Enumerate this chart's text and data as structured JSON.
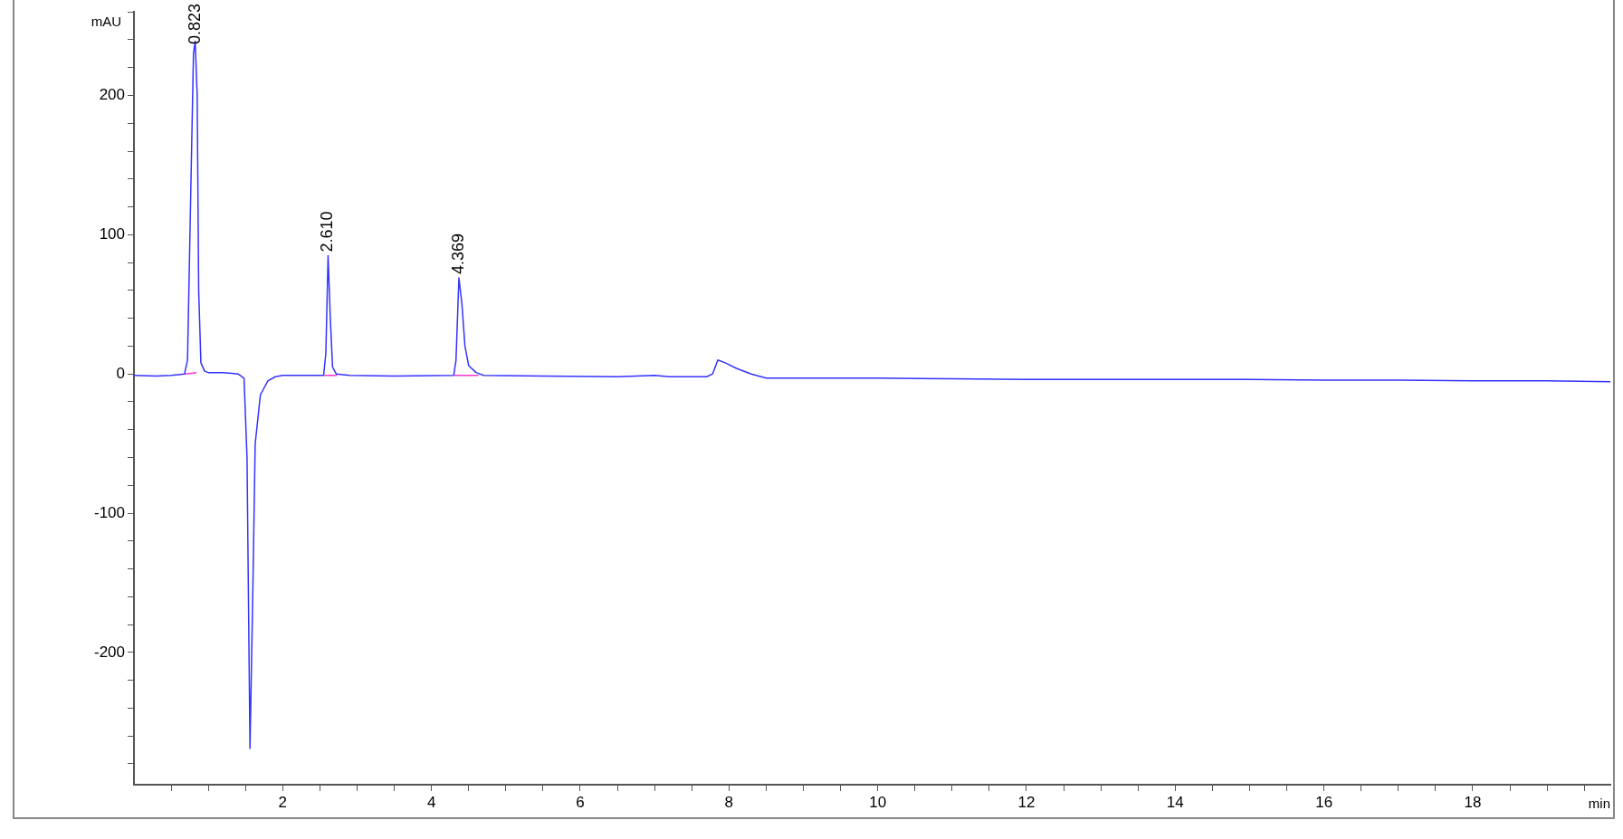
{
  "chart_data": {
    "type": "line",
    "xlabel": "min",
    "ylabel": "mAU",
    "xlim": [
      0,
      19.85
    ],
    "ylim": [
      -295,
      260
    ],
    "xticks": [
      {
        "value": 0.5,
        "label": null
      },
      {
        "value": 1,
        "label": null
      },
      {
        "value": 1.5,
        "label": null
      },
      2,
      {
        "value": 2.5,
        "label": null
      },
      {
        "value": 3,
        "label": null
      },
      {
        "value": 3.5,
        "label": null
      },
      4,
      {
        "value": 4.5,
        "label": null
      },
      {
        "value": 5,
        "label": null
      },
      {
        "value": 5.5,
        "label": null
      },
      6,
      {
        "value": 6.5,
        "label": null
      },
      {
        "value": 7,
        "label": null
      },
      {
        "value": 7.5,
        "label": null
      },
      8,
      {
        "value": 8.5,
        "label": null
      },
      {
        "value": 9,
        "label": null
      },
      {
        "value": 9.5,
        "label": null
      },
      10,
      {
        "value": 10.5,
        "label": null
      },
      {
        "value": 11,
        "label": null
      },
      {
        "value": 11.5,
        "label": null
      },
      12,
      {
        "value": 12.5,
        "label": null
      },
      {
        "value": 13,
        "label": null
      },
      {
        "value": 13.5,
        "label": null
      },
      14,
      {
        "value": 14.5,
        "label": null
      },
      {
        "value": 15,
        "label": null
      },
      {
        "value": 15.5,
        "label": null
      },
      16,
      {
        "value": 16.5,
        "label": null
      },
      {
        "value": 17,
        "label": null
      },
      {
        "value": 17.5,
        "label": null
      },
      18,
      {
        "value": 18.5,
        "label": null
      },
      {
        "value": 19,
        "label": null
      },
      {
        "value": 19.5,
        "label": null
      }
    ],
    "yticks": [
      {
        "value": -280,
        "label": null
      },
      {
        "value": -260,
        "label": null
      },
      {
        "value": -240,
        "label": null
      },
      {
        "value": -220,
        "label": null
      },
      -200,
      {
        "value": -180,
        "label": null
      },
      {
        "value": -160,
        "label": null
      },
      {
        "value": -140,
        "label": null
      },
      {
        "value": -120,
        "label": null
      },
      -100,
      {
        "value": -80,
        "label": null
      },
      {
        "value": -60,
        "label": null
      },
      {
        "value": -40,
        "label": null
      },
      {
        "value": -20,
        "label": null
      },
      0,
      {
        "value": 20,
        "label": null
      },
      {
        "value": 40,
        "label": null
      },
      {
        "value": 60,
        "label": null
      },
      {
        "value": 80,
        "label": null
      },
      100,
      {
        "value": 120,
        "label": null
      },
      {
        "value": 140,
        "label": null
      },
      {
        "value": 160,
        "label": null
      },
      {
        "value": 180,
        "label": null
      },
      200,
      {
        "value": 220,
        "label": null
      },
      {
        "value": 240,
        "label": null
      },
      {
        "value": 260,
        "label": null
      }
    ],
    "grid": false,
    "legend": false,
    "marker": "none",
    "line_style": "solid",
    "series": [
      {
        "color": "#3333ff",
        "x": [
          0,
          0.3,
          0.5,
          0.68,
          0.72,
          0.76,
          0.8,
          0.823,
          0.85,
          0.87,
          0.9,
          0.95,
          1,
          1.2,
          1.4,
          1.48,
          1.52,
          1.56,
          1.6,
          1.63,
          1.7,
          1.8,
          1.9,
          2,
          2.3,
          2.55,
          2.58,
          2.61,
          2.64,
          2.67,
          2.72,
          2.9,
          3.5,
          4.3,
          4.33,
          4.369,
          4.41,
          4.45,
          4.5,
          4.6,
          4.7,
          5.5,
          6.5,
          7,
          7.2,
          7.7,
          7.78,
          7.85,
          7.95,
          8.1,
          8.3,
          8.5,
          9,
          10,
          11,
          12,
          13,
          14,
          15,
          16,
          17,
          18,
          19,
          19.85
        ],
        "values": [
          -1,
          -1.5,
          -1,
          0,
          10,
          120,
          230,
          239,
          200,
          60,
          8,
          2,
          1,
          1,
          0,
          -3,
          -60,
          -269,
          -150,
          -50,
          -15,
          -5,
          -2,
          -1,
          -1,
          -1,
          15,
          85,
          40,
          5,
          0,
          -1,
          -1.5,
          -1,
          10,
          69,
          50,
          20,
          6,
          1,
          -1,
          -1.5,
          -2,
          -1,
          -2,
          -2,
          0,
          10,
          8,
          4,
          0,
          -3,
          -3,
          -3,
          -3.5,
          -4,
          -4,
          -4,
          -4,
          -4.5,
          -4.5,
          -5,
          -5,
          -5.5
        ]
      },
      {
        "color": "#ff33cc",
        "x": [
          0.68,
          0.84,
          0.85,
          2.56,
          2.73,
          2.74,
          4.31,
          4.63
        ],
        "values": [
          0,
          1,
          null,
          -1,
          -1,
          null,
          -1,
          -1
        ]
      }
    ],
    "annotations": [
      {
        "text": "0.823",
        "x": 0.823,
        "y": 239
      },
      {
        "text": "2.610",
        "x": 2.61,
        "y": 85
      },
      {
        "text": "4.369",
        "x": 4.369,
        "y": 69
      }
    ]
  }
}
